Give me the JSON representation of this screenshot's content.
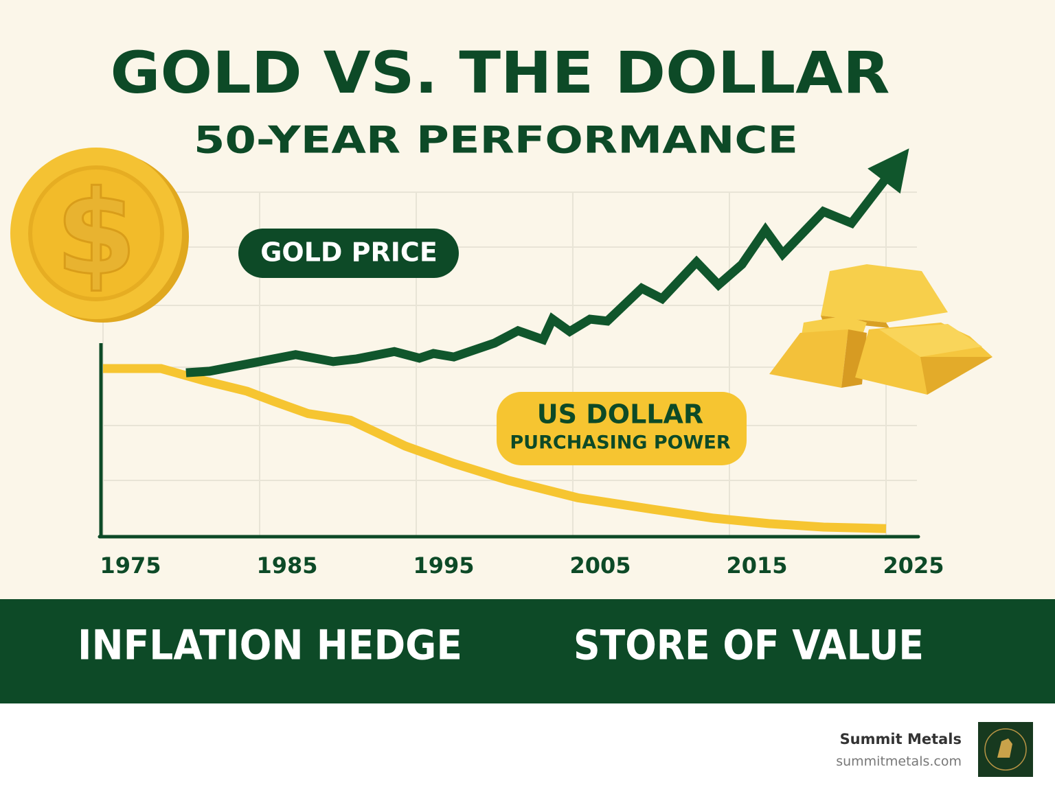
{
  "chart_data": {
    "type": "line",
    "title": "GOLD VS. THE DOLLAR",
    "subtitle": "50-YEAR PERFORMANCE",
    "coin_symbol": "$",
    "xlim": [
      1975,
      2025
    ],
    "xticks": [
      1975,
      1985,
      1995,
      2005,
      2015,
      2025
    ],
    "ylim": [
      0,
      100
    ],
    "grid": true,
    "series": [
      {
        "name": "GOLD PRICE",
        "color": "#10562c",
        "x": [
          1980.3,
          1981.8,
          1987.3,
          1989.7,
          1991.2,
          1993.6,
          1995.2,
          1996.1,
          1997.4,
          2000,
          2001.5,
          2003.1,
          2003.7,
          2004.8,
          2006.1,
          2007.2,
          2009.4,
          2010.7,
          2012.9,
          2014.3,
          2015.8,
          2017.3,
          2018.4,
          2021,
          2022.8,
          2025
        ],
        "values": [
          42.5,
          42.9,
          47.2,
          45.4,
          46.1,
          48,
          46.3,
          47.5,
          46.6,
          50.2,
          53.4,
          51.1,
          56.4,
          53.2,
          56.4,
          55.9,
          64.4,
          61.7,
          71.2,
          65.3,
          70.6,
          79.5,
          73.3,
          84.3,
          81.3,
          92.9
        ]
      },
      {
        "name": "US DOLLAR",
        "subname": "PURCHASING POWER",
        "color": "#f6c531",
        "x": [
          1975,
          1978.7,
          1981.5,
          1984.2,
          1985.9,
          1988.1,
          1990.8,
          1994.3,
          1997.4,
          2000.9,
          2005.3,
          2010.1,
          2014,
          2017.5,
          2021,
          2025
        ],
        "values": [
          43.6,
          43.6,
          40.4,
          37.7,
          35.1,
          31.9,
          30.2,
          23.5,
          19,
          14.6,
          10.1,
          7.1,
          4.8,
          3.4,
          2.5,
          2.1
        ]
      }
    ]
  },
  "banner": {
    "left": "INFLATION HEDGE",
    "right": "STORE OF VALUE"
  },
  "footer": {
    "brand": "Summit Metals",
    "url": "summitmetals.com"
  }
}
